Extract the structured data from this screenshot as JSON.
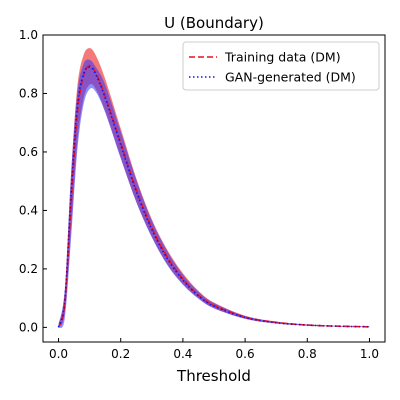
{
  "chart_data": {
    "type": "line",
    "title": "U (Boundary)",
    "xlabel": "Threshold",
    "ylabel": "",
    "xlim": [
      -0.05,
      1.05
    ],
    "ylim": [
      -0.05,
      1.0
    ],
    "xticks": [
      "0.0",
      "0.2",
      "0.4",
      "0.6",
      "0.8",
      "1.0"
    ],
    "yticks": [
      "0.0",
      "0.2",
      "0.4",
      "0.6",
      "0.8",
      "1.0"
    ],
    "legend_position": "top-right",
    "grid": false,
    "x": [
      0.0,
      0.02,
      0.04,
      0.06,
      0.08,
      0.1,
      0.12,
      0.15,
      0.2,
      0.25,
      0.3,
      0.35,
      0.4,
      0.45,
      0.5,
      0.6,
      0.7,
      0.8,
      0.9,
      1.0
    ],
    "series": [
      {
        "name": "Training data (DM)",
        "color": "#e8121e",
        "style": "dashed",
        "values": [
          0.0,
          0.08,
          0.42,
          0.73,
          0.86,
          0.895,
          0.87,
          0.79,
          0.63,
          0.47,
          0.34,
          0.24,
          0.165,
          0.11,
          0.075,
          0.035,
          0.017,
          0.008,
          0.004,
          0.002
        ],
        "band_upper": [
          0.01,
          0.12,
          0.52,
          0.82,
          0.93,
          0.955,
          0.93,
          0.85,
          0.68,
          0.51,
          0.37,
          0.265,
          0.185,
          0.125,
          0.085,
          0.04,
          0.02,
          0.01,
          0.005,
          0.003
        ],
        "band_lower": [
          0.0,
          0.05,
          0.33,
          0.63,
          0.78,
          0.83,
          0.815,
          0.74,
          0.58,
          0.43,
          0.31,
          0.215,
          0.148,
          0.1,
          0.066,
          0.03,
          0.014,
          0.006,
          0.003,
          0.001
        ],
        "band_color": "#ee3333"
      },
      {
        "name": "GAN-generated (DM)",
        "color": "#1212ee",
        "style": "dotted",
        "values": [
          0.0,
          0.09,
          0.45,
          0.75,
          0.865,
          0.89,
          0.865,
          0.785,
          0.625,
          0.465,
          0.335,
          0.235,
          0.162,
          0.108,
          0.073,
          0.034,
          0.016,
          0.008,
          0.004,
          0.002
        ],
        "band_upper": [
          0.01,
          0.13,
          0.52,
          0.8,
          0.9,
          0.915,
          0.89,
          0.83,
          0.67,
          0.505,
          0.365,
          0.26,
          0.18,
          0.122,
          0.083,
          0.039,
          0.019,
          0.009,
          0.005,
          0.003
        ],
        "band_lower": [
          0.0,
          0.03,
          0.3,
          0.6,
          0.76,
          0.815,
          0.805,
          0.735,
          0.578,
          0.428,
          0.308,
          0.213,
          0.146,
          0.098,
          0.065,
          0.029,
          0.013,
          0.006,
          0.003,
          0.001
        ],
        "band_color": "#3333ff"
      }
    ]
  }
}
